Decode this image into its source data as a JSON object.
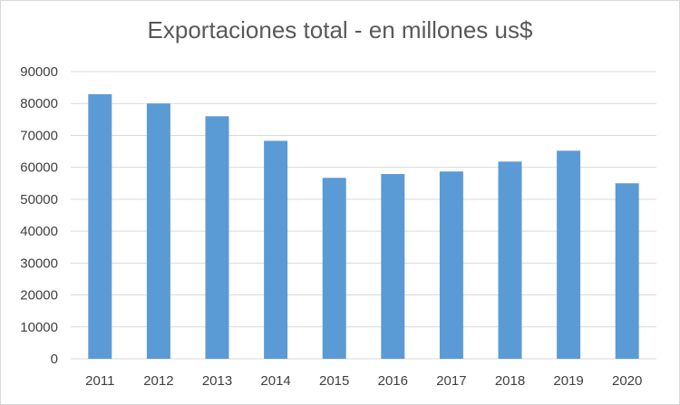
{
  "chart_data": {
    "type": "bar",
    "title": "Exportaciones total - en millones us$",
    "xlabel": "",
    "ylabel": "",
    "categories": [
      "2011",
      "2012",
      "2013",
      "2014",
      "2015",
      "2016",
      "2017",
      "2018",
      "2019",
      "2020"
    ],
    "series": [
      {
        "name": "Exportaciones",
        "values": [
          82900,
          80000,
          76000,
          68300,
          56700,
          57900,
          58700,
          61800,
          65200,
          55000
        ]
      }
    ],
    "ylim": [
      0,
      90000
    ],
    "yticks": [
      "0",
      "10000",
      "20000",
      "30000",
      "40000",
      "50000",
      "60000",
      "70000",
      "80000",
      "90000"
    ],
    "grid": true,
    "legend": "none",
    "colors": {
      "bar": "#5b9bd5",
      "grid": "#d9d9d9"
    }
  }
}
